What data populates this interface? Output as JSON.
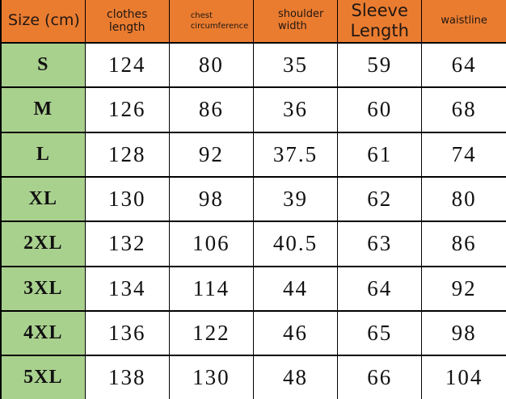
{
  "chart_data": {
    "type": "table",
    "title": "Size (cm)",
    "columns": [
      "Size (cm)",
      "clothes length",
      "chest circumference",
      "shoulder width",
      "Sleeve Length",
      "waistline"
    ],
    "rows": [
      [
        "S",
        124,
        80,
        35,
        59,
        64
      ],
      [
        "M",
        126,
        86,
        36,
        60,
        68
      ],
      [
        "L",
        128,
        92,
        37.5,
        61,
        74
      ],
      [
        "XL",
        130,
        98,
        39,
        62,
        80
      ],
      [
        "2XL",
        132,
        106,
        40.5,
        63,
        86
      ],
      [
        "3XL",
        134,
        114,
        44,
        64,
        92
      ],
      [
        "4XL",
        136,
        122,
        46,
        65,
        98
      ],
      [
        "5XL",
        138,
        130,
        48,
        66,
        104
      ]
    ]
  },
  "size_chart": {
    "headers": [
      {
        "id": "size",
        "label": "Size (cm)"
      },
      {
        "id": "clothes-length",
        "label": "clothes\nlength"
      },
      {
        "id": "chest-circumference",
        "label": "chest\ncircumference"
      },
      {
        "id": "shoulder-width",
        "label": "shoulder\nwidth"
      },
      {
        "id": "sleeve-length",
        "label": "Sleeve\nLength"
      },
      {
        "id": "waistline",
        "label": "waistline"
      }
    ],
    "rows": [
      {
        "size": "S",
        "values": [
          "124",
          "80",
          "35",
          "59",
          "64"
        ]
      },
      {
        "size": "M",
        "values": [
          "126",
          "86",
          "36",
          "60",
          "68"
        ]
      },
      {
        "size": "L",
        "values": [
          "128",
          "92",
          "37.5",
          "61",
          "74"
        ]
      },
      {
        "size": "XL",
        "values": [
          "130",
          "98",
          "39",
          "62",
          "80"
        ]
      },
      {
        "size": "2XL",
        "values": [
          "132",
          "106",
          "40.5",
          "63",
          "86"
        ]
      },
      {
        "size": "3XL",
        "values": [
          "134",
          "114",
          "44",
          "64",
          "92"
        ]
      },
      {
        "size": "4XL",
        "values": [
          "136",
          "122",
          "46",
          "65",
          "98"
        ]
      },
      {
        "size": "5XL",
        "values": [
          "138",
          "130",
          "48",
          "66",
          "104"
        ]
      }
    ],
    "colors": {
      "header_bg": "#EA7C30",
      "size_column_bg": "#A9D18E",
      "grid": "#000000",
      "cell_bg": "#FFFFFF",
      "text": "#111111"
    }
  }
}
